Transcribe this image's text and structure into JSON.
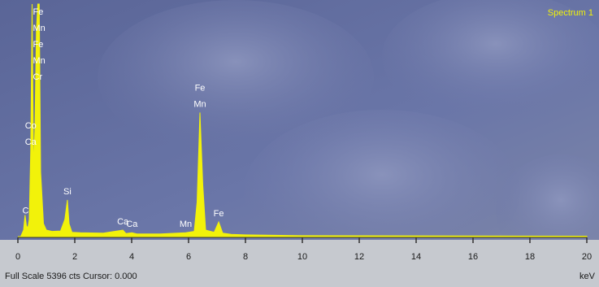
{
  "chart_data": {
    "type": "spectrum",
    "title": "Spectrum 1",
    "footer": "Full Scale 5396 cts Cursor: 0.000",
    "x_label": "keV",
    "xlim": [
      0,
      20
    ],
    "xticks": [
      0,
      2,
      4,
      6,
      8,
      10,
      12,
      14,
      16,
      18,
      20
    ],
    "ylim": [
      0,
      5396
    ],
    "color": "#f2f20a",
    "x": [
      0,
      0.1,
      0.2,
      0.25,
      0.3,
      0.35,
      0.4,
      0.45,
      0.5,
      0.55,
      0.6,
      0.65,
      0.7,
      0.75,
      0.8,
      0.9,
      1.0,
      1.2,
      1.5,
      1.65,
      1.74,
      1.8,
      1.9,
      2.2,
      3,
      3.69,
      3.8,
      4.01,
      4.2,
      5,
      5.9,
      6.2,
      6.3,
      6.4,
      6.5,
      6.6,
      6.9,
      7.06,
      7.2,
      7.5,
      8,
      10,
      20
    ],
    "values": [
      0,
      0,
      150,
      500,
      250,
      200,
      400,
      2000,
      5396,
      1500,
      2500,
      4800,
      5396,
      5396,
      1500,
      300,
      150,
      120,
      130,
      400,
      850,
      300,
      100,
      90,
      80,
      150,
      70,
      90,
      60,
      60,
      90,
      120,
      800,
      2880,
      1200,
      150,
      100,
      340,
      80,
      50,
      40,
      20,
      10
    ],
    "annotations": [
      {
        "text": "Co",
        "x": 0.45
      },
      {
        "text": "Ca",
        "x": 0.45
      },
      {
        "text": "Fe",
        "x": 0.7
      },
      {
        "text": "Mn",
        "x": 0.7
      },
      {
        "text": "Fe",
        "x": 0.7
      },
      {
        "text": "Mn",
        "x": 0.7
      },
      {
        "text": "Cr",
        "x": 0.7
      },
      {
        "text": "C",
        "x": 0.27
      },
      {
        "text": "Si",
        "x": 1.74
      },
      {
        "text": "Ca",
        "x": 3.69
      },
      {
        "text": "Ca",
        "x": 4.01
      },
      {
        "text": "Mn",
        "x": 5.9
      },
      {
        "text": "Fe",
        "x": 6.4
      },
      {
        "text": "Mn",
        "x": 6.4
      },
      {
        "text": "Fe",
        "x": 7.06
      }
    ]
  }
}
